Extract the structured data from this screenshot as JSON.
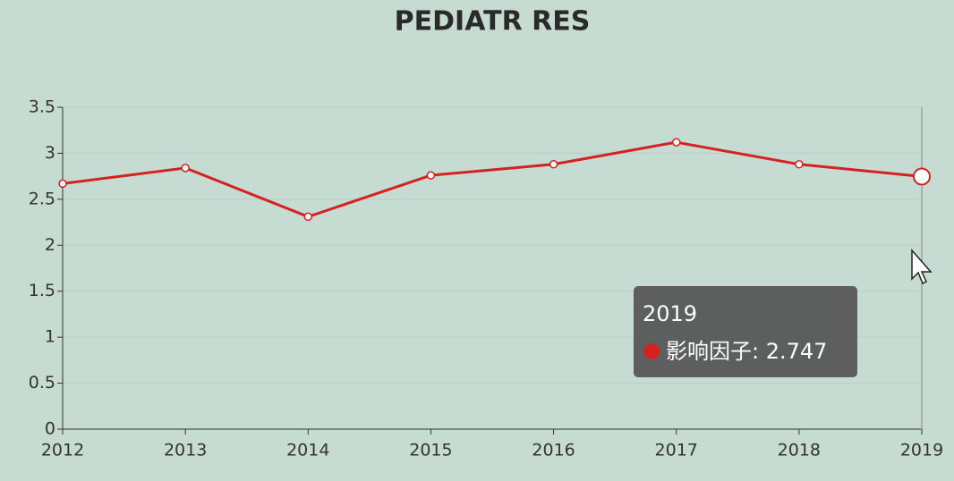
{
  "chart_data": {
    "type": "line",
    "title": "PEDIATR RES",
    "categories": [
      "2012",
      "2013",
      "2014",
      "2015",
      "2016",
      "2017",
      "2018",
      "2019"
    ],
    "series": [
      {
        "color": "#d42222",
        "values": [
          2.67,
          2.84,
          2.31,
          2.76,
          2.88,
          3.12,
          2.88,
          2.747
        ]
      }
    ],
    "ylim": [
      0,
      3.5
    ],
    "yticks": [
      0,
      0.5,
      1,
      1.5,
      2,
      2.5,
      3,
      3.5
    ],
    "grid": true,
    "tooltip": {
      "label": "影响因子: 2.747"
    }
  }
}
